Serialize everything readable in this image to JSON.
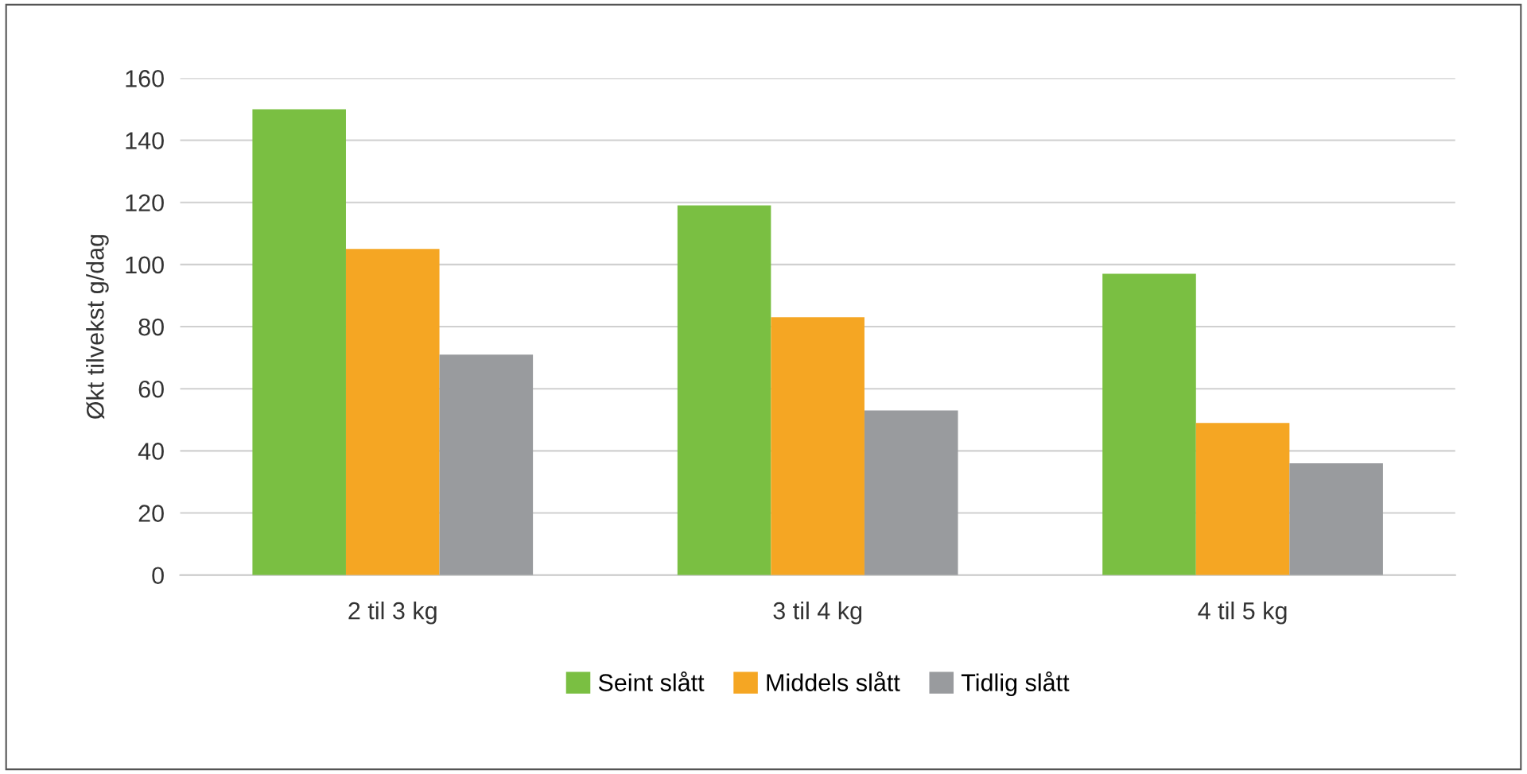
{
  "chart_data": {
    "type": "bar",
    "ylabel": "Økt tilvekst g/dag",
    "categories": [
      "2 til 3 kg",
      "3 til 4 kg",
      "4 til 5 kg"
    ],
    "series": [
      {
        "name": "Seint slått",
        "color": "#7abf42",
        "values": [
          150,
          119,
          97
        ]
      },
      {
        "name": "Middels slått",
        "color": "#f5a623",
        "values": [
          105,
          83,
          49
        ]
      },
      {
        "name": "Tidlig slått",
        "color": "#999b9e",
        "values": [
          71,
          53,
          36
        ]
      }
    ],
    "ylim": [
      0,
      160
    ],
    "yticks": [
      0,
      20,
      40,
      60,
      80,
      100,
      120,
      140,
      160
    ],
    "grid": "y",
    "legend": "bottom"
  }
}
